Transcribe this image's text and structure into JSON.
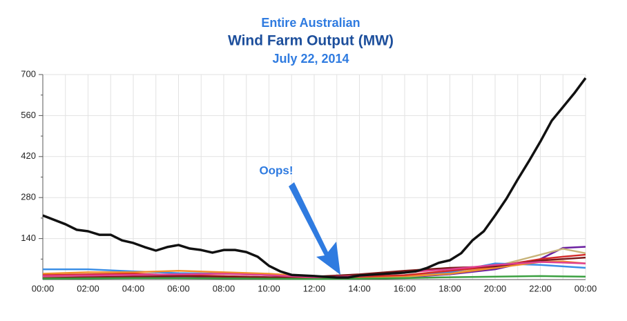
{
  "chart_data": {
    "type": "line",
    "title": "Entire Australian",
    "subtitle": "Wind Farm Output (MW)",
    "date": "July 22, 2014",
    "annotation": "Oops!",
    "xlim": [
      0,
      24
    ],
    "xticks": [
      {
        "value": 0,
        "label": "00:00"
      },
      {
        "value": 2,
        "label": "02:00"
      },
      {
        "value": 4,
        "label": "04:00"
      },
      {
        "value": 6,
        "label": "06:00"
      },
      {
        "value": 8,
        "label": "08:00"
      },
      {
        "value": 10,
        "label": "10:00"
      },
      {
        "value": 12,
        "label": "12:00"
      },
      {
        "value": 14,
        "label": "14:00"
      },
      {
        "value": 16,
        "label": "16:00"
      },
      {
        "value": 18,
        "label": "18:00"
      },
      {
        "value": 20,
        "label": "20:00"
      },
      {
        "value": 22,
        "label": "22:00"
      },
      {
        "value": 24,
        "label": "00:00"
      }
    ],
    "xminor": [
      1,
      3,
      5,
      7,
      9,
      11,
      13,
      15,
      17,
      19,
      21,
      23
    ],
    "ylim": [
      0,
      700
    ],
    "yticks": [
      140,
      280,
      420,
      560,
      700
    ],
    "yminor": [
      70,
      210,
      350,
      490,
      630
    ],
    "grid": true,
    "series": [
      {
        "color": "#6a1fa0",
        "x": [
          0,
          2,
          4,
          6,
          8,
          10,
          12,
          14,
          16,
          18,
          20,
          22,
          23,
          24
        ],
        "values": [
          8,
          10,
          9,
          7,
          6,
          5,
          4,
          5,
          8,
          18,
          35,
          70,
          108,
          112
        ]
      },
      {
        "color": "#c8b47a",
        "x": [
          0,
          2,
          4,
          6,
          8,
          10,
          12,
          14,
          16,
          18,
          20,
          22,
          23,
          24
        ],
        "values": [
          10,
          12,
          14,
          12,
          10,
          8,
          5,
          6,
          10,
          20,
          45,
          85,
          105,
          90
        ]
      },
      {
        "color": "#3a8ee6",
        "x": [
          0,
          2,
          4,
          6,
          8,
          10,
          12,
          14,
          16,
          18,
          20,
          22,
          23,
          24
        ],
        "values": [
          35,
          35,
          28,
          22,
          20,
          15,
          8,
          10,
          15,
          25,
          55,
          50,
          45,
          40
        ]
      },
      {
        "color": "#f0902a",
        "x": [
          0,
          2,
          4,
          6,
          8,
          10,
          12,
          14,
          16,
          18,
          20,
          22,
          23,
          24
        ],
        "values": [
          20,
          25,
          25,
          30,
          25,
          20,
          10,
          8,
          12,
          20,
          40,
          60,
          62,
          55
        ]
      },
      {
        "color": "#d42a2a",
        "x": [
          0,
          2,
          4,
          6,
          8,
          10,
          12,
          14,
          16,
          18,
          20,
          22,
          23,
          24
        ],
        "values": [
          15,
          18,
          20,
          15,
          12,
          8,
          6,
          10,
          15,
          30,
          45,
          70,
          78,
          85
        ]
      },
      {
        "color": "#7a1a1a",
        "x": [
          0,
          2,
          4,
          6,
          8,
          10,
          12,
          14,
          16,
          18,
          20,
          22,
          23,
          24
        ],
        "values": [
          5,
          8,
          10,
          12,
          10,
          8,
          10,
          18,
          30,
          40,
          45,
          65,
          70,
          75
        ]
      },
      {
        "color": "#3aa040",
        "x": [
          0,
          2,
          4,
          6,
          8,
          10,
          12,
          14,
          16,
          18,
          20,
          22,
          23,
          24
        ],
        "values": [
          3,
          4,
          5,
          5,
          4,
          3,
          2,
          3,
          5,
          8,
          10,
          12,
          11,
          10
        ]
      },
      {
        "color": "#e04090",
        "x": [
          0,
          2,
          4,
          6,
          8,
          10,
          12,
          14,
          16,
          18,
          20,
          22,
          23,
          24
        ],
        "values": [
          12,
          14,
          16,
          18,
          20,
          15,
          8,
          12,
          25,
          35,
          50,
          60,
          58,
          55
        ]
      },
      {
        "color": "#111111",
        "x": [
          0,
          1,
          1.5,
          2,
          2.5,
          3,
          3.5,
          4,
          4.5,
          5,
          5.5,
          6,
          6.5,
          7,
          7.5,
          8,
          8.5,
          9,
          9.5,
          10,
          10.5,
          11,
          12,
          13,
          13.5,
          14,
          15,
          16,
          16.5,
          17,
          17.5,
          18,
          18.5,
          19,
          19.5,
          20,
          20.5,
          21,
          21.5,
          22,
          22.5,
          23,
          23.5,
          24
        ],
        "values": [
          219,
          189,
          170,
          165,
          153,
          153,
          134,
          125,
          111,
          99,
          111,
          118,
          106,
          101,
          92,
          101,
          101,
          94,
          78,
          47,
          28,
          16,
          12,
          7,
          7,
          14,
          19,
          24,
          28,
          40,
          57,
          66,
          90,
          134,
          165,
          219,
          276,
          342,
          405,
          471,
          542,
          589,
          636,
          688
        ]
      }
    ]
  }
}
